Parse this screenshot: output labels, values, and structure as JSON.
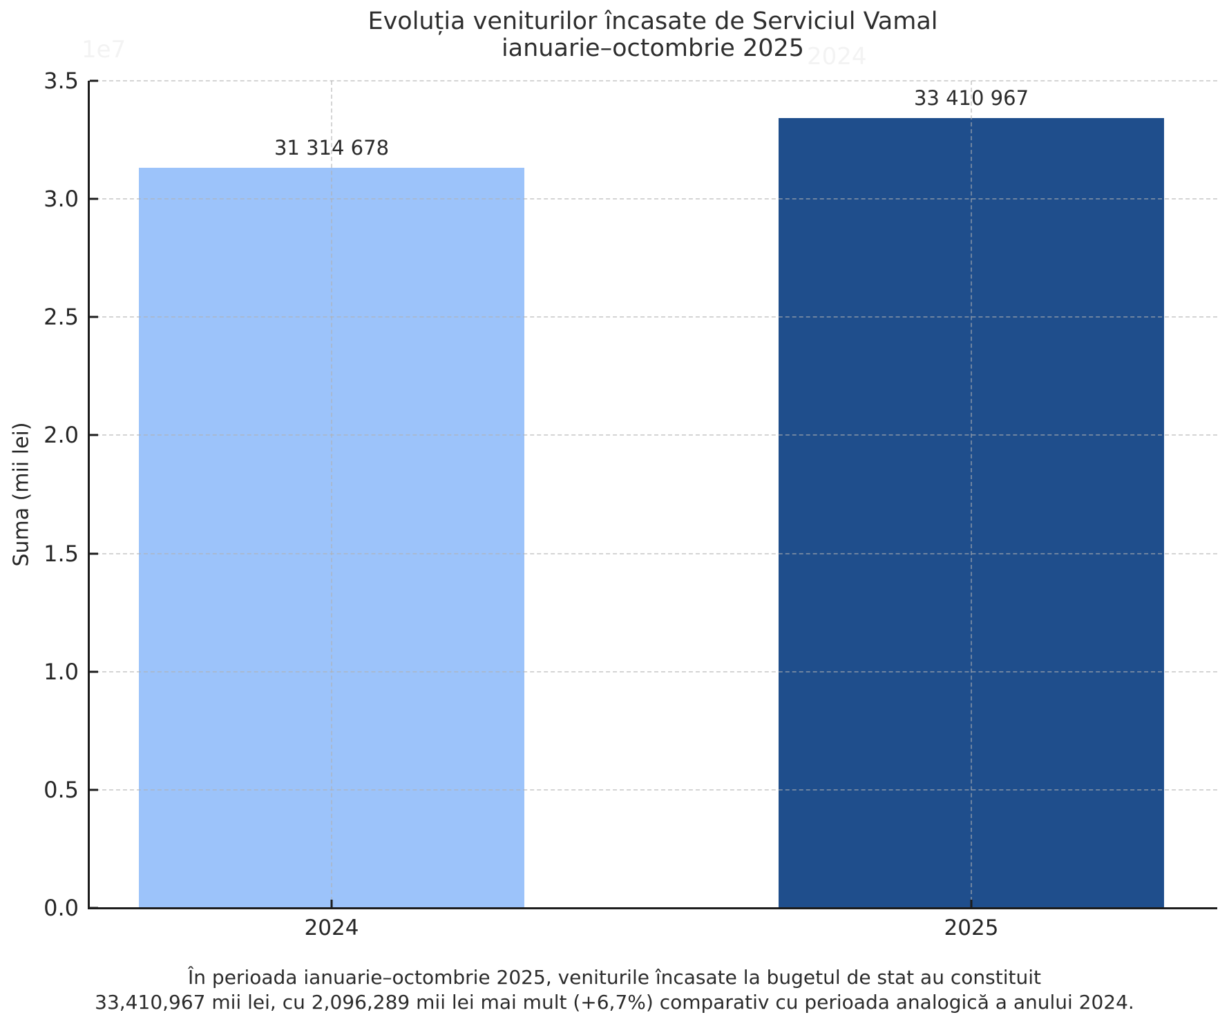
{
  "title": {
    "line1": "Evoluția veniturilor încasate de Serviciul Vamal",
    "line2": "ianuarie–octombrie 2025"
  },
  "caption": {
    "line1": "În perioada ianuarie–octombrie 2025, veniturile încasate la bugetul de stat au constituit",
    "line2": "33,410,967 mii lei, cu 2,096,289 mii lei mai mult (+6,7%) comparativ cu perioada analogică a anului 2024."
  },
  "artifacts": {
    "ghost_offset_text": "1e7",
    "ghost_title_text": "2024"
  },
  "chart_data": {
    "type": "bar",
    "title": "Evoluția veniturilor încasate de Serviciul Vamal\nianuarie–octombrie 2025",
    "categories": [
      "2024",
      "2025"
    ],
    "values": [
      31314678,
      33410967
    ],
    "value_labels": [
      "31 314 678",
      "33 410 967"
    ],
    "bar_colors": [
      "#9CC3FA",
      "#1F4E8C"
    ],
    "xlabel": "",
    "ylabel": "Suma (mii lei)",
    "ylim": [
      0,
      35000000
    ],
    "ytick_values": [
      0,
      5000000,
      10000000,
      15000000,
      20000000,
      25000000,
      30000000,
      35000000
    ],
    "ytick_labels": [
      "0.0",
      "0.5",
      "1.0",
      "1.5",
      "2.0",
      "2.5",
      "3.0",
      "3.5"
    ],
    "grid": true,
    "grid_linestyle": "dashed",
    "grid_over_bars": true,
    "tick_direction": "in",
    "legend_position": "none",
    "caption": "În perioada ianuarie–octombrie 2025, veniturile încasate la bugetul de stat au constituit 33,410,967 mii lei, cu 2,096,289 mii lei mai mult (+6,7%) comparativ cu perioada analogică a anului 2024."
  }
}
